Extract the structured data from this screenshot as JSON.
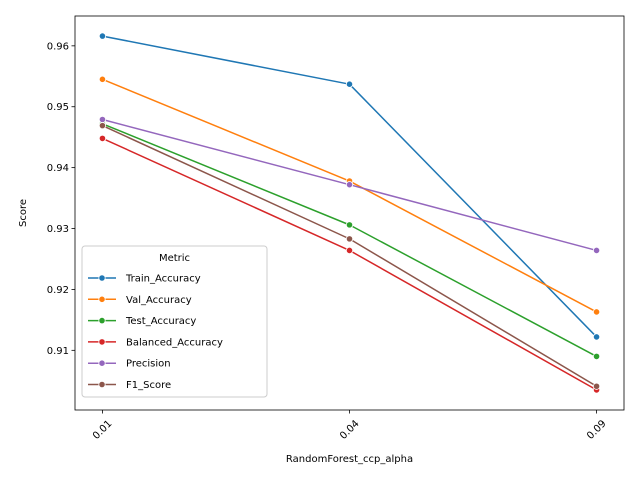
{
  "chart_data": {
    "type": "line",
    "title": "",
    "xlabel": "RandomForest_ccp_alpha",
    "ylabel": "Score",
    "categories": [
      "0.01",
      "0.04",
      "0.09"
    ],
    "ylim": [
      0.9002,
      0.9649
    ],
    "yticks": [
      "0.91",
      "0.92",
      "0.93",
      "0.94",
      "0.95",
      "0.96"
    ],
    "yticks_values": [
      0.91,
      0.92,
      0.93,
      0.94,
      0.95,
      0.96
    ],
    "grid": false,
    "x_tick_rotation": 45,
    "legend": {
      "title": "Metric",
      "placement": "lower-left"
    },
    "series": [
      {
        "name": "Train_Accuracy",
        "color": "#1f77b4",
        "values": [
          0.9616,
          0.9537,
          0.9122
        ]
      },
      {
        "name": "Val_Accuracy",
        "color": "#ff7f0e",
        "values": [
          0.9545,
          0.9378,
          0.9163
        ]
      },
      {
        "name": "Test_Accuracy",
        "color": "#2ca02c",
        "values": [
          0.9472,
          0.9306,
          0.909
        ]
      },
      {
        "name": "Balanced_Accuracy",
        "color": "#d62728",
        "values": [
          0.9448,
          0.9264,
          0.9035
        ]
      },
      {
        "name": "Precision",
        "color": "#9467bd",
        "values": [
          0.9479,
          0.9372,
          0.9264
        ]
      },
      {
        "name": "F1_Score",
        "color": "#8c564b",
        "values": [
          0.9469,
          0.9283,
          0.9041
        ]
      }
    ]
  }
}
